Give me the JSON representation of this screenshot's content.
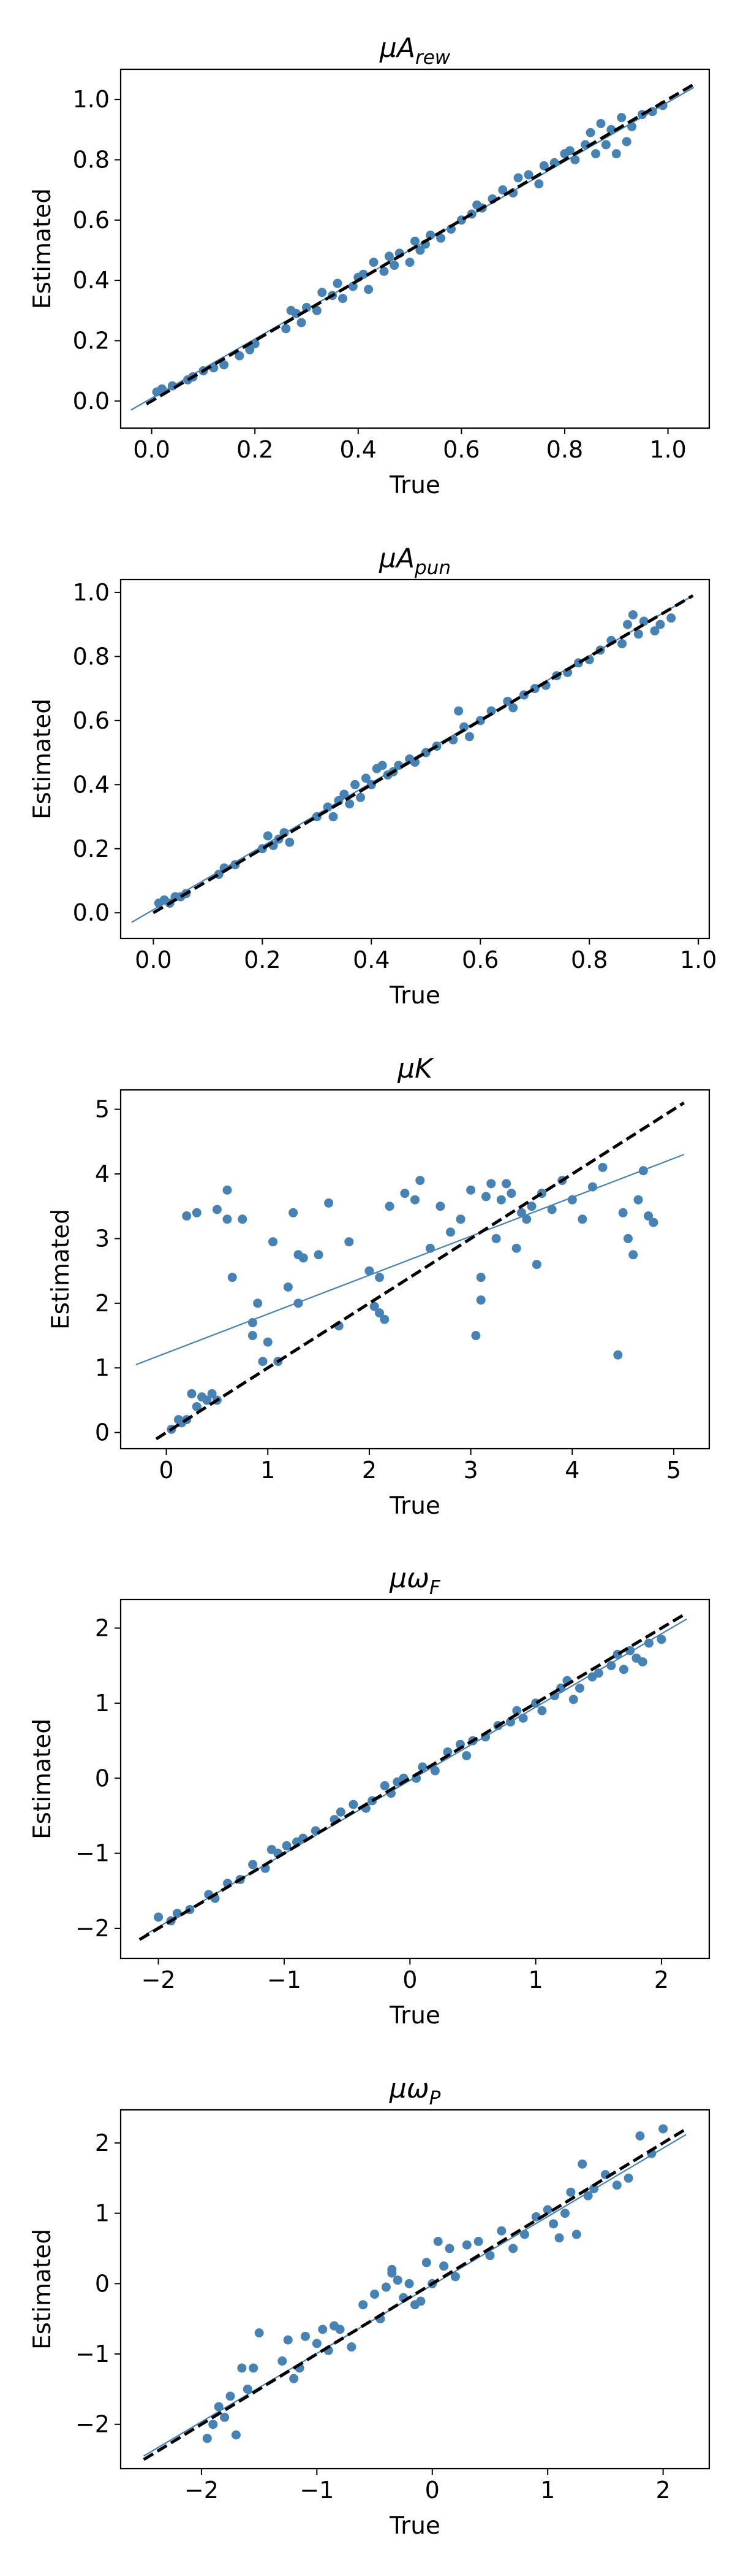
{
  "figure": {
    "background": "#ffffff",
    "point_color": "#4682b4",
    "identity_line_color": "#000000",
    "fit_line_color": "#4682b4"
  },
  "chart_data": [
    {
      "type": "scatter",
      "title": "μA_rew",
      "title_main": "μA",
      "title_sub": "rew",
      "xlabel": "True",
      "ylabel": "Estimated",
      "xlim": [
        -0.06,
        1.08
      ],
      "ylim": [
        -0.09,
        1.1
      ],
      "xticks": [
        0.0,
        0.2,
        0.4,
        0.6,
        0.8,
        1.0
      ],
      "yticks": [
        0.0,
        0.2,
        0.4,
        0.6,
        0.8,
        1.0
      ],
      "xtick_labels": [
        "0.0",
        "0.2",
        "0.4",
        "0.6",
        "0.8",
        "1.0"
      ],
      "ytick_labels": [
        "0.0",
        "0.2",
        "0.4",
        "0.6",
        "0.8",
        "1.0"
      ],
      "grid": false,
      "identity_line": {
        "style": "dashed",
        "x": [
          -0.01,
          1.05
        ],
        "y": [
          -0.01,
          1.05
        ]
      },
      "fit_line": {
        "x": [
          -0.04,
          1.05
        ],
        "y": [
          -0.03,
          1.04
        ]
      },
      "x": [
        0.01,
        0.02,
        0.04,
        0.07,
        0.08,
        0.1,
        0.12,
        0.14,
        0.17,
        0.19,
        0.2,
        0.26,
        0.27,
        0.29,
        0.3,
        0.32,
        0.33,
        0.35,
        0.36,
        0.37,
        0.39,
        0.4,
        0.41,
        0.42,
        0.43,
        0.45,
        0.46,
        0.47,
        0.48,
        0.5,
        0.51,
        0.53,
        0.54,
        0.56,
        0.58,
        0.6,
        0.62,
        0.63,
        0.64,
        0.66,
        0.68,
        0.7,
        0.71,
        0.73,
        0.75,
        0.76,
        0.78,
        0.8,
        0.82,
        0.84,
        0.85,
        0.86,
        0.87,
        0.88,
        0.89,
        0.9,
        0.91,
        0.92,
        0.93,
        0.95,
        0.97,
        0.99,
        0.28,
        0.52,
        0.81
      ],
      "y": [
        0.03,
        0.04,
        0.05,
        0.07,
        0.08,
        0.1,
        0.11,
        0.12,
        0.15,
        0.17,
        0.19,
        0.24,
        0.3,
        0.26,
        0.31,
        0.3,
        0.36,
        0.35,
        0.39,
        0.34,
        0.38,
        0.41,
        0.42,
        0.37,
        0.46,
        0.43,
        0.48,
        0.45,
        0.49,
        0.46,
        0.53,
        0.52,
        0.55,
        0.54,
        0.57,
        0.6,
        0.62,
        0.65,
        0.64,
        0.67,
        0.7,
        0.69,
        0.74,
        0.75,
        0.72,
        0.78,
        0.79,
        0.82,
        0.8,
        0.85,
        0.89,
        0.82,
        0.92,
        0.85,
        0.9,
        0.82,
        0.94,
        0.86,
        0.91,
        0.95,
        0.96,
        0.98,
        0.29,
        0.5,
        0.83
      ]
    },
    {
      "type": "scatter",
      "title": "μA_pun",
      "title_main": "μA",
      "title_sub": "pun",
      "xlabel": "True",
      "ylabel": "Estimated",
      "xlim": [
        -0.06,
        1.02
      ],
      "ylim": [
        -0.08,
        1.04
      ],
      "xticks": [
        0.0,
        0.2,
        0.4,
        0.6,
        0.8,
        1.0
      ],
      "yticks": [
        0.0,
        0.2,
        0.4,
        0.6,
        0.8,
        1.0
      ],
      "xtick_labels": [
        "0.0",
        "0.2",
        "0.4",
        "0.6",
        "0.8",
        "1.0"
      ],
      "ytick_labels": [
        "0.0",
        "0.2",
        "0.4",
        "0.6",
        "0.8",
        "1.0"
      ],
      "grid": false,
      "identity_line": {
        "style": "dashed",
        "x": [
          0.0,
          0.99
        ],
        "y": [
          0.0,
          0.99
        ]
      },
      "fit_line": {
        "x": [
          -0.04,
          0.99
        ],
        "y": [
          -0.03,
          0.99
        ]
      },
      "x": [
        0.01,
        0.02,
        0.03,
        0.04,
        0.05,
        0.06,
        0.12,
        0.13,
        0.15,
        0.2,
        0.21,
        0.22,
        0.23,
        0.24,
        0.25,
        0.3,
        0.32,
        0.33,
        0.34,
        0.35,
        0.36,
        0.37,
        0.38,
        0.39,
        0.4,
        0.41,
        0.42,
        0.43,
        0.44,
        0.45,
        0.47,
        0.48,
        0.5,
        0.52,
        0.55,
        0.56,
        0.57,
        0.58,
        0.6,
        0.62,
        0.65,
        0.66,
        0.68,
        0.7,
        0.72,
        0.74,
        0.76,
        0.78,
        0.8,
        0.82,
        0.84,
        0.86,
        0.87,
        0.88,
        0.89,
        0.9,
        0.92,
        0.93,
        0.95
      ],
      "y": [
        0.03,
        0.04,
        0.03,
        0.05,
        0.05,
        0.06,
        0.12,
        0.14,
        0.15,
        0.2,
        0.24,
        0.21,
        0.23,
        0.25,
        0.22,
        0.3,
        0.33,
        0.3,
        0.35,
        0.37,
        0.34,
        0.4,
        0.36,
        0.42,
        0.4,
        0.45,
        0.46,
        0.43,
        0.44,
        0.46,
        0.48,
        0.47,
        0.5,
        0.52,
        0.54,
        0.63,
        0.58,
        0.55,
        0.6,
        0.63,
        0.66,
        0.64,
        0.68,
        0.7,
        0.71,
        0.74,
        0.75,
        0.78,
        0.79,
        0.82,
        0.85,
        0.84,
        0.9,
        0.93,
        0.87,
        0.91,
        0.88,
        0.9,
        0.92
      ]
    },
    {
      "type": "scatter",
      "title": "μK",
      "title_main": "μK",
      "title_sub": "",
      "xlabel": "True",
      "ylabel": "Estimated",
      "xlim": [
        -0.45,
        5.35
      ],
      "ylim": [
        -0.25,
        5.3
      ],
      "xticks": [
        0,
        1,
        2,
        3,
        4,
        5
      ],
      "yticks": [
        0,
        1,
        2,
        3,
        4,
        5
      ],
      "xtick_labels": [
        "0",
        "1",
        "2",
        "3",
        "4",
        "5"
      ],
      "ytick_labels": [
        "0",
        "1",
        "2",
        "3",
        "4",
        "5"
      ],
      "grid": false,
      "identity_line": {
        "style": "dashed",
        "x": [
          -0.1,
          5.1
        ],
        "y": [
          -0.1,
          5.1
        ]
      },
      "fit_line": {
        "x": [
          -0.3,
          5.1
        ],
        "y": [
          1.05,
          4.3
        ]
      },
      "x": [
        0.05,
        0.12,
        0.15,
        0.2,
        0.25,
        0.3,
        0.35,
        0.4,
        0.45,
        0.5,
        0.6,
        0.65,
        0.2,
        0.3,
        0.5,
        0.6,
        0.75,
        0.85,
        0.9,
        0.95,
        1.0,
        1.05,
        1.1,
        1.2,
        1.25,
        1.3,
        1.35,
        1.5,
        1.6,
        1.7,
        1.8,
        2.0,
        2.05,
        2.1,
        2.15,
        2.2,
        2.35,
        2.45,
        2.5,
        2.6,
        2.7,
        2.8,
        2.9,
        3.0,
        3.05,
        3.1,
        3.15,
        3.2,
        3.25,
        3.3,
        3.35,
        3.4,
        3.45,
        3.5,
        3.55,
        3.6,
        3.65,
        3.7,
        3.8,
        3.9,
        4.0,
        4.1,
        4.2,
        4.3,
        4.45,
        4.5,
        4.55,
        4.6,
        4.65,
        4.7,
        4.75,
        4.8,
        3.1,
        0.85,
        1.3,
        2.1
      ],
      "y": [
        0.05,
        0.2,
        0.15,
        0.2,
        0.6,
        0.4,
        0.55,
        0.5,
        0.6,
        0.5,
        3.3,
        2.4,
        3.35,
        3.4,
        3.45,
        3.75,
        3.3,
        1.7,
        2.0,
        1.1,
        1.4,
        2.95,
        1.1,
        2.25,
        3.4,
        2.75,
        2.7,
        2.75,
        3.55,
        1.65,
        2.95,
        2.5,
        1.95,
        1.85,
        1.75,
        3.5,
        3.7,
        3.6,
        3.9,
        2.85,
        3.5,
        3.1,
        3.3,
        3.75,
        1.5,
        2.05,
        3.65,
        3.85,
        3.0,
        3.6,
        3.85,
        3.7,
        2.85,
        3.4,
        3.3,
        3.5,
        2.6,
        3.7,
        3.45,
        3.9,
        3.6,
        3.3,
        3.8,
        4.1,
        1.2,
        3.4,
        3.0,
        2.75,
        3.6,
        4.05,
        3.35,
        3.25,
        2.4,
        1.5,
        2.0,
        2.4
      ]
    },
    {
      "type": "scatter",
      "title": "μω_F",
      "title_main": "μω",
      "title_sub": "F",
      "xlabel": "True",
      "ylabel": "Estimated",
      "xlim": [
        -2.3,
        2.38
      ],
      "ylim": [
        -2.4,
        2.38
      ],
      "xticks": [
        -2,
        -1,
        0,
        1,
        2
      ],
      "yticks": [
        -2,
        -1,
        0,
        1,
        2
      ],
      "xtick_labels": [
        "−2",
        "−1",
        "0",
        "1",
        "2"
      ],
      "ytick_labels": [
        "−2",
        "−1",
        "0",
        "1",
        "2"
      ],
      "grid": false,
      "identity_line": {
        "style": "dashed",
        "x": [
          -2.15,
          2.2
        ],
        "y": [
          -2.15,
          2.2
        ]
      },
      "fit_line": {
        "x": [
          -2.1,
          2.2
        ],
        "y": [
          -2.08,
          2.12
        ]
      },
      "x": [
        -2.0,
        -1.9,
        -1.85,
        -1.75,
        -1.6,
        -1.55,
        -1.45,
        -1.35,
        -1.25,
        -1.15,
        -1.1,
        -1.05,
        -0.98,
        -0.9,
        -0.85,
        -0.75,
        -0.6,
        -0.55,
        -0.45,
        -0.35,
        -0.3,
        -0.2,
        -0.15,
        -0.1,
        -0.05,
        0.05,
        0.1,
        0.2,
        0.3,
        0.4,
        0.45,
        0.5,
        0.6,
        0.7,
        0.8,
        0.85,
        0.9,
        1.0,
        1.05,
        1.15,
        1.2,
        1.25,
        1.3,
        1.35,
        1.45,
        1.5,
        1.6,
        1.65,
        1.7,
        1.75,
        1.8,
        1.85,
        1.9,
        2.0
      ],
      "y": [
        -1.85,
        -1.9,
        -1.8,
        -1.75,
        -1.55,
        -1.6,
        -1.4,
        -1.35,
        -1.15,
        -1.2,
        -0.95,
        -1.0,
        -0.9,
        -0.85,
        -0.8,
        -0.7,
        -0.55,
        -0.45,
        -0.35,
        -0.4,
        -0.3,
        -0.1,
        -0.2,
        -0.05,
        0.0,
        0.0,
        0.15,
        0.1,
        0.35,
        0.45,
        0.3,
        0.5,
        0.55,
        0.7,
        0.75,
        0.9,
        0.8,
        1.0,
        0.9,
        1.1,
        1.2,
        1.3,
        1.05,
        1.2,
        1.35,
        1.4,
        1.5,
        1.65,
        1.45,
        1.7,
        1.6,
        1.55,
        1.8,
        1.85
      ]
    },
    {
      "type": "scatter",
      "title": "μω_P",
      "title_main": "μω",
      "title_sub": "P",
      "xlabel": "True",
      "ylabel": "Estimated",
      "xlim": [
        -2.7,
        2.4
      ],
      "ylim": [
        -2.63,
        2.47
      ],
      "xticks": [
        -2,
        -1,
        0,
        1,
        2
      ],
      "yticks": [
        -2,
        -1,
        0,
        1,
        2
      ],
      "xtick_labels": [
        "−2",
        "−1",
        "0",
        "1",
        "2"
      ],
      "ytick_labels": [
        "−2",
        "−1",
        "0",
        "1",
        "2"
      ],
      "grid": false,
      "identity_line": {
        "style": "dashed",
        "x": [
          -2.5,
          2.2
        ],
        "y": [
          -2.5,
          2.2
        ]
      },
      "fit_line": {
        "x": [
          -2.5,
          2.2
        ],
        "y": [
          -2.45,
          2.12
        ]
      },
      "x": [
        -1.95,
        -1.9,
        -1.85,
        -1.8,
        -1.75,
        -1.7,
        -1.6,
        -1.55,
        -1.5,
        -1.3,
        -1.25,
        -1.2,
        -1.15,
        -1.1,
        -1.0,
        -0.95,
        -0.9,
        -0.85,
        -0.8,
        -0.7,
        -0.6,
        -0.5,
        -0.45,
        -0.4,
        -0.35,
        -0.3,
        -0.25,
        -0.2,
        -0.15,
        -0.1,
        -0.05,
        0.0,
        0.05,
        0.1,
        0.15,
        0.2,
        0.3,
        0.4,
        0.5,
        0.6,
        0.7,
        0.8,
        0.9,
        1.0,
        1.05,
        1.1,
        1.15,
        1.2,
        1.25,
        1.3,
        1.35,
        1.4,
        1.5,
        1.6,
        1.7,
        1.8,
        1.9,
        2.0,
        -1.65,
        -0.35
      ],
      "y": [
        -2.2,
        -2.0,
        -1.75,
        -1.9,
        -1.6,
        -2.15,
        -1.5,
        -1.2,
        -0.7,
        -1.1,
        -0.8,
        -1.35,
        -1.2,
        -0.75,
        -0.85,
        -0.65,
        -0.95,
        -0.6,
        -0.65,
        -0.9,
        -0.3,
        -0.15,
        -0.5,
        -0.05,
        0.15,
        0.05,
        -0.2,
        0.0,
        -0.3,
        -0.25,
        0.3,
        0.0,
        0.6,
        0.25,
        0.5,
        0.1,
        0.55,
        0.6,
        0.4,
        0.75,
        0.5,
        0.7,
        0.95,
        1.05,
        0.85,
        0.65,
        1.0,
        1.3,
        0.7,
        1.7,
        1.25,
        1.35,
        1.55,
        1.4,
        1.5,
        2.1,
        1.85,
        2.2,
        -1.2,
        0.2
      ]
    }
  ]
}
